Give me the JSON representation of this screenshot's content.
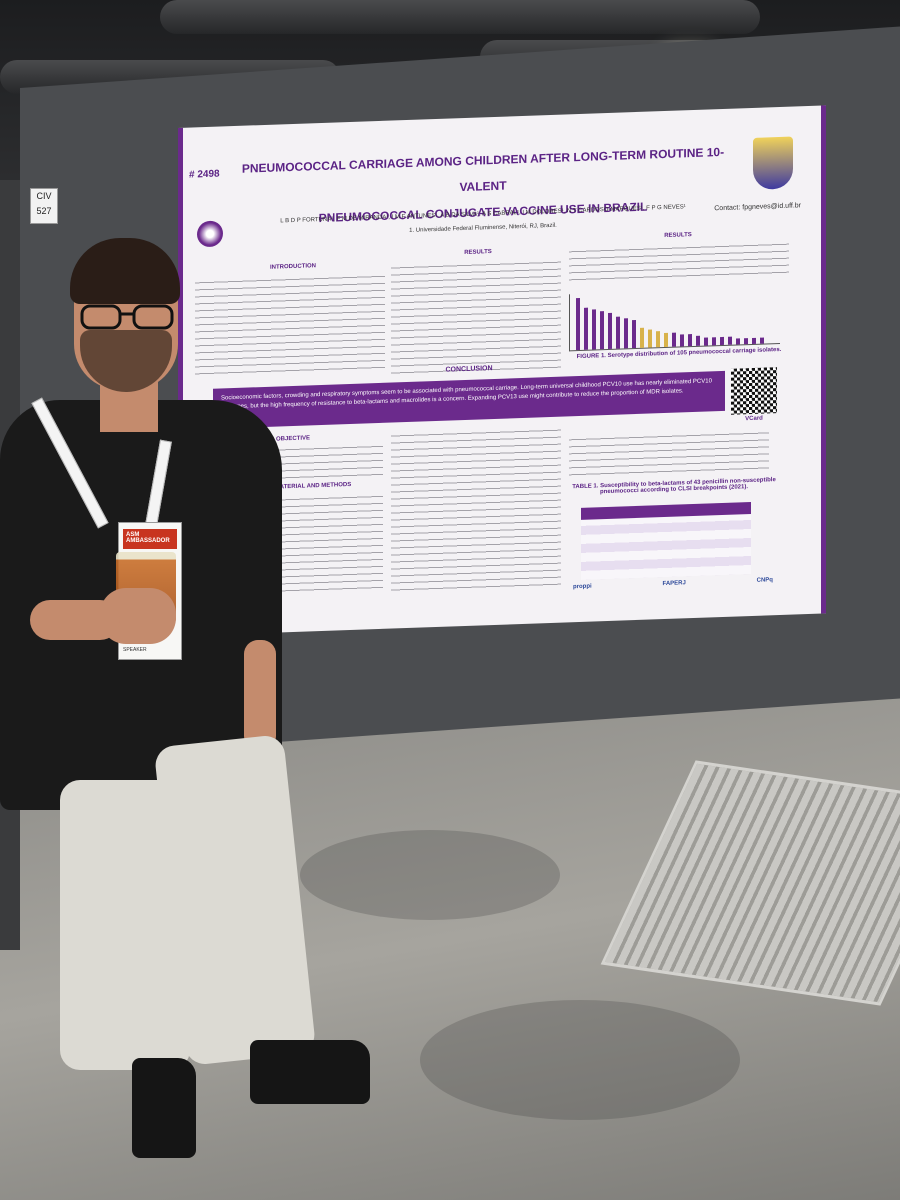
{
  "scene": {
    "description_tags": [
      "conference-hall",
      "poster-board",
      "person"
    ]
  },
  "booth": {
    "label_line1": "CIV",
    "label_line2": "527"
  },
  "poster": {
    "number": "# 2498",
    "title_line1": "PNEUMOCOCCAL CARRIAGE AMONG CHILDREN AFTER LONG-TERM ROUTINE 10-VALENT",
    "title_line2": "PNEUMOCOCCAL CONJUGATE VACCINE USE IN BRAZIL",
    "authors": "L B D P FORTUNA¹, F M DE MIRANDA¹, I M F ANTUNES¹, A B DA SILVA¹, A S CABRAL¹, I M DOLORES¹, N T CARDOSO-MARQUES¹, F P G NEVES¹",
    "affiliation": "1. Universidade Federal Fluminense, Niterói, RJ, Brazil.",
    "contact": "Contact: fpgneves@id.uff.br",
    "sections": {
      "introduction": "INTRODUCTION",
      "results": "RESULTS",
      "results_right": "RESULTS",
      "conclusion": "CONCLUSION",
      "objective": "OBJECTIVE",
      "methods": "MATERIAL AND METHODS"
    },
    "conclusion_text": "Socioeconomic factors, crowding and respiratory symptoms seem to be associated with pneumococcal carriage. Long-term universal childhood PCV10 use has nearly eliminated PCV10 serotypes, but the high frequency of resistance to beta-lactams and macrolides is a concern. Expanding PCV13 use might contribute to reduce the proportion of MDR isolates.",
    "figure_caption": "FIGURE 1. Serotype distribution of 105 pneumococcal carriage isolates.",
    "table_caption": "TABLE 1. Susceptibility to beta-lactams of 43 penicillin non-susceptible pneumococci according to CLSI breakpoints (2021).",
    "qr_label": "VCard",
    "sponsors": [
      "proppi",
      "FAPERJ",
      "CNPq"
    ]
  },
  "person": {
    "badge_ribbon": "ASM AMBASSADOR",
    "badge_role": "SPEAKER"
  },
  "colors": {
    "poster_purple": "#6b2a8c",
    "wall_gray": "#4b4d50",
    "floor_concrete": "#a6a49e"
  }
}
